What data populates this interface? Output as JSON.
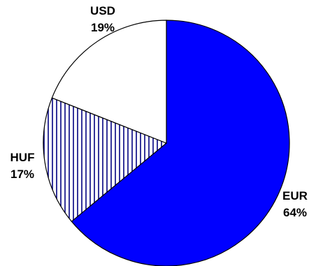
{
  "chart_data": {
    "type": "pie",
    "categories": [
      "EUR",
      "HUF",
      "USD"
    ],
    "values": [
      64,
      17,
      19
    ],
    "value_labels": [
      "64%",
      "17%",
      "19%"
    ],
    "colors": [
      "#0000FF",
      "#FFFFFF",
      "#FFFFFF"
    ],
    "patterns": [
      "solid",
      "vertical-hatch",
      "solid"
    ],
    "title": "",
    "legend": "none"
  }
}
